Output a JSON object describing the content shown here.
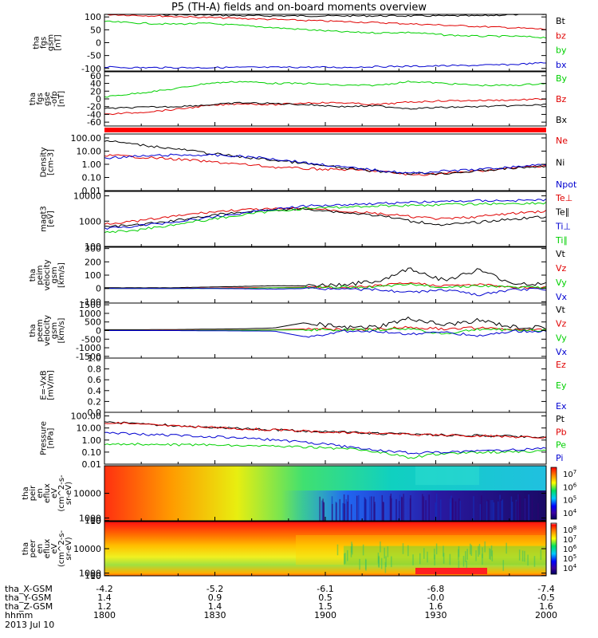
{
  "chart_data": {
    "type": "line",
    "title": "P5 (TH-A) fields and on-board moments overview",
    "x": {
      "ticks": [
        "1800",
        "1830",
        "1900",
        "1930",
        "2000"
      ],
      "range": [
        "18:00",
        "20:00"
      ]
    },
    "footer": {
      "rows": [
        {
          "label": "tha_X-GSM",
          "values": [
            "-4.2",
            "-5.2",
            "-6.1",
            "-6.8",
            "-7.4"
          ]
        },
        {
          "label": "tha_Y-GSM",
          "values": [
            "1.4",
            "0.9",
            "0.5",
            "-0.0",
            "-0.5"
          ]
        },
        {
          "label": "tha_Z-GSM",
          "values": [
            "1.2",
            "1.4",
            "1.5",
            "1.6",
            "1.6"
          ]
        },
        {
          "label": "hhmm",
          "values": [
            "1800",
            "1830",
            "1900",
            "1930",
            "2000"
          ]
        }
      ],
      "date": "2013 Jul 10"
    },
    "panels": [
      {
        "id": "fgs_gsm",
        "ylabel": [
          "tha",
          "fgs",
          "gsm",
          "[nT]"
        ],
        "ylim": [
          -110,
          110
        ],
        "yticks": [
          "100",
          "50",
          "0",
          "-50",
          "-100"
        ],
        "ytick_values": [
          100,
          50,
          0,
          -50,
          -100
        ],
        "series": [
          {
            "name": "Bt",
            "color": "#000000",
            "values": [
              112,
              111,
              109,
              107,
              105,
              104,
              104,
              104,
              104,
              104,
              104,
              104,
              109,
              112
            ]
          },
          {
            "name": "bz",
            "color": "#e00000",
            "values": [
              110,
              106,
              102,
              98,
              94,
              90,
              86,
              82,
              78,
              73,
              68,
              63,
              58,
              52
            ]
          },
          {
            "name": "by",
            "color": "#00d000",
            "values": [
              82,
              76,
              72,
              75,
              67,
              58,
              50,
              42,
              38,
              40,
              30,
              25,
              25,
              20
            ]
          },
          {
            "name": "bx",
            "color": "#0000d0",
            "values": [
              -95,
              -97,
              -97,
              -97,
              -96,
              -96,
              -95,
              -96,
              -93,
              -92,
              -90,
              -88,
              -85,
              -78
            ]
          }
        ]
      },
      {
        "id": "fgs_gse",
        "ylabel": [
          "tha",
          "fgs",
          "gse",
          "-ofp",
          "[nT]"
        ],
        "ylim": [
          -70,
          70
        ],
        "yticks": [
          "60",
          "40",
          "20",
          "0",
          "-20",
          "-40",
          "-60"
        ],
        "ytick_values": [
          60,
          40,
          20,
          0,
          -20,
          -40,
          -60
        ],
        "series": [
          {
            "name": "By",
            "color": "#00d000",
            "values": [
              5,
              15,
              25,
              40,
              45,
              40,
              40,
              35,
              35,
              45,
              40,
              35,
              35,
              40
            ]
          },
          {
            "name": "Bz",
            "color": "#e00000",
            "values": [
              -40,
              -35,
              -28,
              -18,
              -12,
              -15,
              -10,
              -10,
              -15,
              -8,
              -5,
              -4,
              -3,
              0
            ]
          },
          {
            "name": "Bx",
            "color": "#000000",
            "values": [
              -25,
              -22,
              -20,
              -16,
              -10,
              -12,
              -15,
              -20,
              -18,
              -25,
              -22,
              -20,
              -18,
              -15
            ]
          }
        ]
      },
      {
        "id": "density",
        "ylabel": [
          "Density",
          "[cm-3]"
        ],
        "log": true,
        "ylim": [
          0.01,
          200
        ],
        "yticks": [
          "100.00",
          "10.00",
          "1.00",
          "0.10",
          "0.01"
        ],
        "ytick_values": [
          100,
          10,
          1,
          0.1,
          0.01
        ],
        "series": [
          {
            "name": "Ne",
            "color": "#e00000",
            "values": [
              5,
              3.5,
              2.5,
              1.6,
              1.0,
              0.6,
              0.45,
              0.4,
              0.3,
              0.15,
              0.2,
              0.3,
              0.5,
              0.8
            ]
          },
          {
            "name": "Ni",
            "color": "#000000",
            "values": [
              60,
              30,
              15,
              7,
              3.5,
              2.0,
              1.0,
              0.5,
              0.3,
              0.2,
              0.2,
              0.3,
              0.5,
              0.7
            ]
          },
          {
            "name": "Npot",
            "color": "#0000d0",
            "values": [
              3,
              4,
              5,
              5,
              4,
              2.5,
              1.2,
              0.6,
              0.35,
              0.2,
              0.3,
              0.4,
              0.6,
              1.0
            ]
          }
        ]
      },
      {
        "id": "temperature",
        "ylabel": [
          "magt3",
          "[eV]"
        ],
        "log": true,
        "ylim": [
          100,
          15000
        ],
        "yticks": [
          "10000",
          "1000",
          "100"
        ],
        "ytick_values": [
          10000,
          1000,
          100
        ],
        "series": [
          {
            "name": "Te⊥",
            "color": "#e00000",
            "values": [
              800,
              1000,
              1500,
              2200,
              2800,
              3000,
              3200,
              2500,
              2000,
              1500,
              1200,
              1500,
              2000,
              2500
            ]
          },
          {
            "name": "Te∥",
            "color": "#000000",
            "values": [
              600,
              700,
              1000,
              1600,
              2200,
              2800,
              3000,
              2200,
              1700,
              1000,
              700,
              900,
              1200,
              1500
            ]
          },
          {
            "name": "Ti⊥",
            "color": "#0000d0",
            "values": [
              500,
              650,
              900,
              1300,
              2000,
              3000,
              4000,
              4500,
              5000,
              5500,
              6000,
              6500,
              6500,
              7000
            ]
          },
          {
            "name": "Ti∥",
            "color": "#00d000",
            "values": [
              350,
              450,
              700,
              1100,
              1700,
              2500,
              3200,
              3600,
              4000,
              4200,
              4500,
              4800,
              5000,
              5200
            ]
          }
        ]
      },
      {
        "id": "peim_velocity",
        "ylabel": [
          "tha",
          "peim",
          "velocity",
          "gsm",
          "[km/s]"
        ],
        "ylim": [
          -110,
          310
        ],
        "yticks": [
          "300",
          "200",
          "100",
          "0",
          "-100"
        ],
        "ytick_values": [
          300,
          200,
          100,
          0,
          -100
        ],
        "series": [
          {
            "name": "Vt",
            "color": "#000000",
            "values": [
              5,
              5,
              5,
              10,
              15,
              20,
              20,
              30,
              50,
              150,
              60,
              140,
              40,
              30
            ]
          },
          {
            "name": "Vz",
            "color": "#e00000",
            "values": [
              0,
              0,
              0,
              2,
              5,
              5,
              10,
              5,
              20,
              40,
              20,
              30,
              10,
              5
            ]
          },
          {
            "name": "Vy",
            "color": "#00d000",
            "values": [
              0,
              0,
              0,
              0,
              0,
              5,
              5,
              10,
              10,
              30,
              10,
              20,
              10,
              5
            ]
          },
          {
            "name": "Vx",
            "color": "#0000d0",
            "values": [
              0,
              0,
              0,
              0,
              -2,
              -5,
              0,
              -5,
              -10,
              -30,
              -10,
              -50,
              -10,
              -5
            ]
          }
        ]
      },
      {
        "id": "peem_velocity",
        "ylabel": [
          "tha",
          "peem",
          "velocity",
          "gsm",
          "[km/s]"
        ],
        "ylim": [
          -1600,
          1600
        ],
        "yticks": [
          "1500",
          "1000",
          "500",
          "0",
          "-500",
          "-1000",
          "-1500"
        ],
        "ytick_values": [
          1500,
          1000,
          500,
          0,
          -500,
          -1000,
          -1500
        ],
        "series": [
          {
            "name": "Vt",
            "color": "#000000",
            "values": [
              50,
              50,
              60,
              80,
              100,
              150,
              500,
              150,
              200,
              700,
              300,
              600,
              200,
              150
            ]
          },
          {
            "name": "Vz",
            "color": "#e00000",
            "values": [
              0,
              0,
              10,
              20,
              30,
              50,
              100,
              50,
              80,
              200,
              100,
              150,
              50,
              40
            ]
          },
          {
            "name": "Vy",
            "color": "#00d000",
            "values": [
              0,
              0,
              0,
              10,
              20,
              30,
              50,
              30,
              50,
              100,
              -200,
              80,
              30,
              20
            ]
          },
          {
            "name": "Vx",
            "color": "#0000d0",
            "values": [
              0,
              0,
              0,
              -10,
              -20,
              -30,
              -400,
              -30,
              -50,
              -200,
              -100,
              -300,
              -40,
              -30
            ]
          }
        ]
      },
      {
        "id": "efield",
        "ylabel": [
          "E=-VxB",
          "[mV/m]"
        ],
        "ylim": [
          0,
          1
        ],
        "yticks": [
          "1.0",
          "0.8",
          "0.6",
          "0.4",
          "0.2",
          "0.0"
        ],
        "ytick_values": [
          1.0,
          0.8,
          0.6,
          0.4,
          0.2,
          0.0
        ],
        "series": [
          {
            "name": "Ez",
            "color": "#e00000",
            "values": []
          },
          {
            "name": "Ey",
            "color": "#00d000",
            "values": []
          },
          {
            "name": "Ex",
            "color": "#0000d0",
            "values": []
          }
        ]
      },
      {
        "id": "pressure",
        "ylabel": [
          "Pressure",
          "[nPa]"
        ],
        "log": true,
        "ylim": [
          0.01,
          200
        ],
        "yticks": [
          "100.00",
          "10.00",
          "1.00",
          "0.10",
          "0.01"
        ],
        "ytick_values": [
          100,
          10,
          1,
          0.1,
          0.01
        ],
        "series": [
          {
            "name": "Pt",
            "color": "#000000",
            "values": [
              30,
              22,
              16,
              12,
              9,
              7,
              5.5,
              4.5,
              3.6,
              3.0,
              2.6,
              2.3,
              2.0,
              1.8
            ]
          },
          {
            "name": "Pb",
            "color": "#e00000",
            "values": [
              29,
              21,
              15,
              11.5,
              8.8,
              6.8,
              5.3,
              4.3,
              3.5,
              2.9,
              2.5,
              2.2,
              1.9,
              1.7
            ]
          },
          {
            "name": "Pe",
            "color": "#00d000",
            "values": [
              0.5,
              0.45,
              0.4,
              0.4,
              0.35,
              0.3,
              0.25,
              0.2,
              0.1,
              0.03,
              0.08,
              0.1,
              0.1,
              0.12
            ]
          },
          {
            "name": "Pi",
            "color": "#0000d0",
            "values": [
              4,
              3,
              2.5,
              2,
              1.5,
              1.0,
              0.6,
              0.3,
              0.15,
              0.08,
              0.1,
              0.12,
              0.15,
              0.2
            ]
          }
        ]
      },
      {
        "id": "peir_spectrogram",
        "type": "heatmap",
        "ylabel": [
          "tha",
          "peir",
          "en",
          "eflux",
          "eV",
          "(cm^2-s-",
          "sr-eV)"
        ],
        "ylim": [
          7,
          20000
        ],
        "yticks": [
          "10000",
          "1000",
          "100",
          "10"
        ],
        "ytick_values": [
          10000,
          1000,
          100,
          10
        ],
        "colorbar": {
          "ticks": [
            "10",
            "10",
            "10",
            "10"
          ],
          "exponents": [
            "7",
            "6",
            "5",
            "4"
          ]
        }
      },
      {
        "id": "peer_spectrogram",
        "type": "heatmap",
        "ylabel": [
          "tha",
          "peer",
          "en",
          "eflux",
          "eV",
          "(cm^2-s-",
          "sr-eV)"
        ],
        "ylim": [
          7,
          20000
        ],
        "yticks": [
          "10000",
          "1000",
          "100",
          "10"
        ],
        "ytick_values": [
          10000,
          1000,
          100,
          10
        ],
        "colorbar": {
          "ticks": [
            "10",
            "10",
            "10",
            "10",
            "10"
          ],
          "exponents": [
            "8",
            "7",
            "6",
            "5",
            "4"
          ]
        }
      }
    ]
  }
}
